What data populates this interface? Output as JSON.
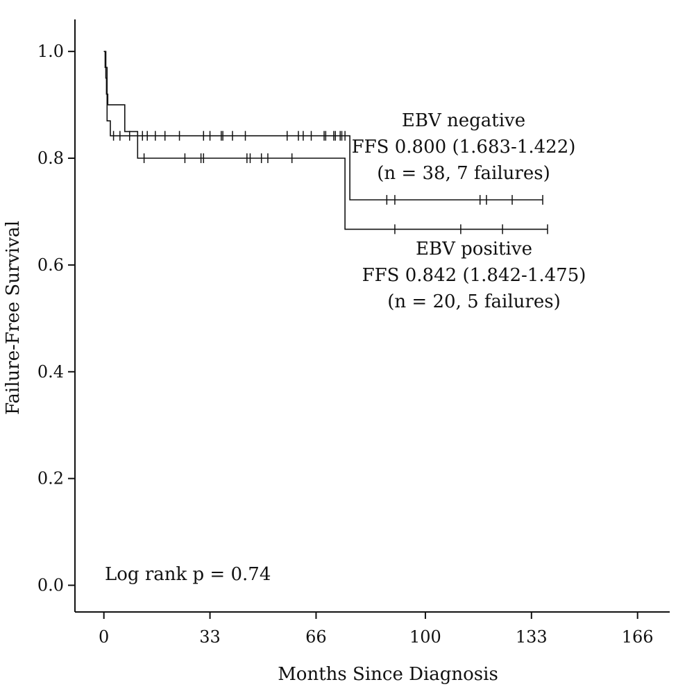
{
  "chart_data": {
    "type": "line",
    "step": true,
    "xlabel": "Months Since Diagnosis",
    "ylabel": "Failure-Free Survival",
    "xlim": [
      -9,
      176
    ],
    "ylim": [
      -0.05,
      1.06
    ],
    "xticks": [
      0,
      33,
      66,
      100,
      133,
      166
    ],
    "yticks": [
      0.0,
      0.2,
      0.4,
      0.6,
      0.8,
      1.0
    ],
    "ytick_labels": [
      "0.0",
      "0.2",
      "0.4",
      "0.6",
      "0.8",
      "1.0"
    ],
    "grid": false,
    "series": [
      {
        "name": "EBV negative",
        "steps": [
          [
            0,
            1.0
          ],
          [
            0.6,
            0.95
          ],
          [
            0.8,
            0.92
          ],
          [
            1.2,
            0.9
          ],
          [
            6.5,
            0.85
          ],
          [
            10.5,
            0.8
          ],
          [
            75,
            0.667
          ],
          [
            138,
            0.667
          ]
        ],
        "censored": [
          12.5,
          25.2,
          30.2,
          31.0,
          44.5,
          45.5,
          49.0,
          51.0,
          58.5,
          90.5,
          111.0,
          124.0,
          138.0
        ]
      },
      {
        "name": "EBV positive",
        "steps": [
          [
            0,
            1.0
          ],
          [
            0.4,
            0.97
          ],
          [
            1.0,
            0.87
          ],
          [
            2.0,
            0.842
          ],
          [
            75,
            0.842
          ],
          [
            76.5,
            0.842
          ],
          [
            76.5,
            0.722
          ],
          [
            136.5,
            0.722
          ]
        ],
        "censored": [
          3.0,
          5.0,
          8.0,
          12.0,
          13.5,
          16.0,
          19.0,
          23.5,
          31.0,
          33.0,
          36.5,
          37.0,
          40.0,
          44.0,
          57.0,
          60.5,
          62.0,
          64.5,
          68.5,
          69.0,
          71.5,
          72.0,
          73.5,
          74.0,
          75.0,
          88.0,
          90.5,
          117.0,
          119.0,
          127.0,
          136.5
        ]
      }
    ],
    "annotations": {
      "neg_name": "EBV negative",
      "neg_ffs": "FFS 0.800 (1.683-1.422)",
      "neg_n": "(n = 38, 7 failures)",
      "pos_name": "EBV positive",
      "pos_ffs": "FFS 0.842 (1.842-1.475)",
      "pos_n": "(n = 20, 5 failures)",
      "logrank": "Log rank p = 0.74"
    }
  }
}
